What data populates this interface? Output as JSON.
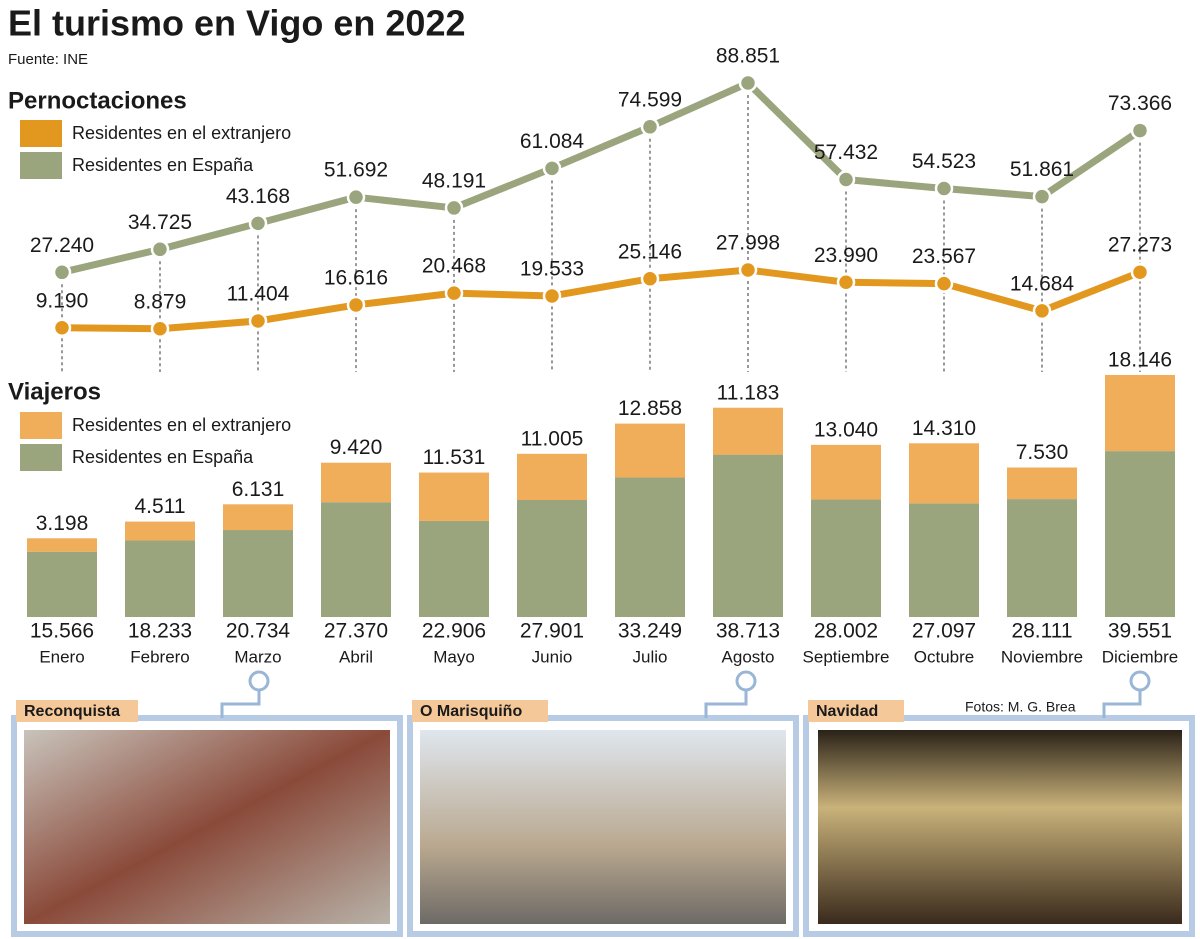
{
  "title": "El turismo en Vigo en 2022",
  "source": "Fuente: INE",
  "chart_data": [
    {
      "type": "line",
      "title": "Pernoctaciones",
      "series": [
        {
          "name": "Residentes en el extranjero",
          "color": "#e2981f",
          "values": [
            9190,
            8879,
            11404,
            16616,
            20468,
            19533,
            25146,
            27998,
            23990,
            23567,
            14684,
            27273
          ],
          "value_labels": [
            "9.190",
            "8.879",
            "11.404",
            "16.616",
            "20.468",
            "19.533",
            "25.146",
            "27.998",
            "23.990",
            "23.567",
            "14.684",
            "27.273"
          ]
        },
        {
          "name": "Residentes en España",
          "color": "#9aa57e",
          "values": [
            27240,
            34725,
            43168,
            51692,
            48191,
            61084,
            74599,
            88851,
            57432,
            54523,
            51861,
            73366
          ],
          "value_labels": [
            "27.240",
            "34.725",
            "43.168",
            "51.692",
            "48.191",
            "61.084",
            "74.599",
            "88.851",
            "57.432",
            "54.523",
            "51.861",
            "73.366"
          ]
        }
      ]
    },
    {
      "type": "stacked_bar",
      "title": "Viajeros",
      "categories": [
        "Enero",
        "Febrero",
        "Marzo",
        "Abril",
        "Mayo",
        "Junio",
        "Julio",
        "Agosto",
        "Septiembre",
        "Octubre",
        "Noviembre",
        "Diciembre"
      ],
      "series": [
        {
          "name": "Residentes en el extranjero",
          "color": "#f0ad5a",
          "values": [
            3198,
            4511,
            6131,
            9420,
            11531,
            11005,
            12858,
            11183,
            13040,
            14310,
            7530,
            18146
          ],
          "value_labels": [
            "3.198",
            "4.511",
            "6.131",
            "9.420",
            "11.531",
            "11.005",
            "12.858",
            "11.183",
            "13.040",
            "14.310",
            "7.530",
            "18.146"
          ]
        },
        {
          "name": "Residentes en España",
          "color": "#9aa57e",
          "values": [
            15566,
            18233,
            20734,
            27370,
            22906,
            27901,
            33249,
            38713,
            28002,
            27097,
            28111,
            39551
          ],
          "value_labels": [
            "15.566",
            "18.233",
            "20.734",
            "27.370",
            "22.906",
            "27.901",
            "33.249",
            "38.713",
            "28.002",
            "27.097",
            "28.111",
            "39.551"
          ]
        }
      ]
    }
  ],
  "photos": [
    {
      "label": "Reconquista"
    },
    {
      "label": "O Marisquiño"
    },
    {
      "label": "Navidad"
    }
  ],
  "credit": "Fotos: M. G. Brea"
}
